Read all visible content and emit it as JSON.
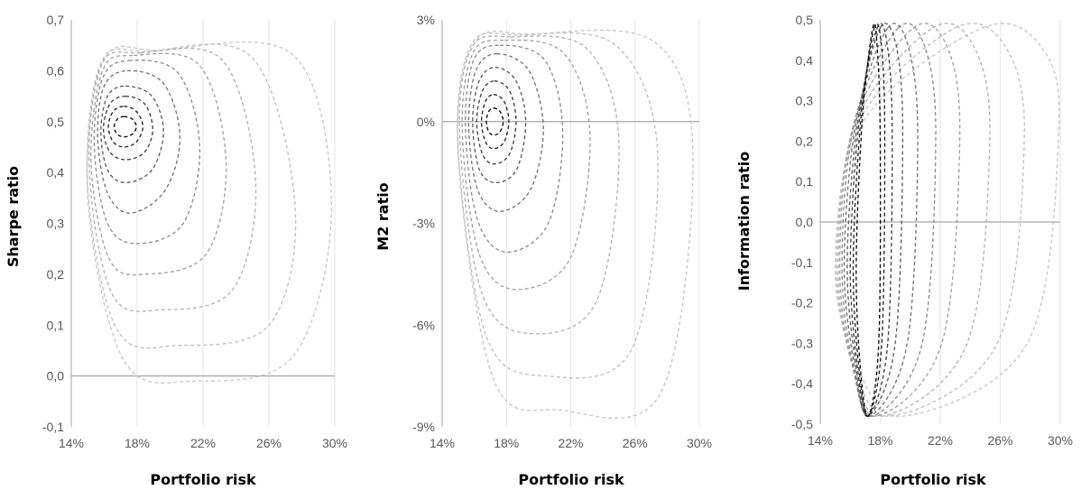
{
  "colors": {
    "background": "#ffffff",
    "gridline": "#e6e6e6",
    "zero_line": "#a6a6a6",
    "tick_text": "#595959",
    "curves_inner_to_outer": [
      "#000000",
      "#1e1e1e",
      "#3a3a3a",
      "#575757",
      "#707070",
      "#898989",
      "#9e9e9e",
      "#b0b0b0",
      "#bebebe",
      "#c6c6c6"
    ]
  },
  "chart_data": [
    {
      "type": "line",
      "title": "",
      "xlabel": "Portfolio risk",
      "ylabel": "Sharpe ratio",
      "xlim": [
        0.14,
        0.3
      ],
      "ylim": [
        -0.1,
        0.7
      ],
      "x_ticks": [
        0.14,
        0.18,
        0.22,
        0.26,
        0.3
      ],
      "x_tick_labels": [
        "14%",
        "18%",
        "22%",
        "26%",
        "30%"
      ],
      "y_ticks": [
        -0.1,
        0.0,
        0.1,
        0.2,
        0.3,
        0.4,
        0.5,
        0.6,
        0.7
      ],
      "y_tick_labels": [
        "-0,1",
        "0,0",
        "0,1",
        "0,2",
        "0,3",
        "0,4",
        "0,5",
        "0,6",
        "0,7"
      ],
      "grid": "vertical",
      "reference_line_y": 0.0,
      "line_style": "dashed",
      "series": [
        {
          "x": [
            0.172,
            0.177,
            0.1795,
            0.177,
            0.172,
            0.168,
            0.166,
            0.168,
            0.172
          ],
          "y": [
            0.51,
            0.505,
            0.49,
            0.475,
            0.47,
            0.475,
            0.49,
            0.505,
            0.51
          ]
        },
        {
          "x": [
            0.172,
            0.1795,
            0.1835,
            0.1795,
            0.172,
            0.1655,
            0.1625,
            0.1655,
            0.172
          ],
          "y": [
            0.53,
            0.52,
            0.49,
            0.46,
            0.45,
            0.46,
            0.49,
            0.52,
            0.53
          ]
        },
        {
          "x": [
            0.173,
            0.1845,
            0.1895,
            0.1845,
            0.173,
            0.1635,
            0.1595,
            0.1635,
            0.173
          ],
          "y": [
            0.55,
            0.535,
            0.485,
            0.44,
            0.425,
            0.44,
            0.485,
            0.535,
            0.55
          ]
        },
        {
          "x": [
            0.173,
            0.189,
            0.196,
            0.189,
            0.173,
            0.162,
            0.158,
            0.162,
            0.173
          ],
          "y": [
            0.57,
            0.55,
            0.48,
            0.405,
            0.38,
            0.405,
            0.48,
            0.55,
            0.57
          ]
        },
        {
          "x": [
            0.174,
            0.196,
            0.206,
            0.197,
            0.176,
            0.162,
            0.156,
            0.16,
            0.174
          ],
          "y": [
            0.6,
            0.575,
            0.47,
            0.365,
            0.32,
            0.36,
            0.47,
            0.57,
            0.6
          ]
        },
        {
          "x": [
            0.175,
            0.205,
            0.218,
            0.208,
            0.18,
            0.162,
            0.154,
            0.159,
            0.175
          ],
          "y": [
            0.62,
            0.595,
            0.45,
            0.3,
            0.26,
            0.3,
            0.45,
            0.585,
            0.62
          ]
        },
        {
          "x": [
            0.178,
            0.218,
            0.234,
            0.222,
            0.185,
            0.163,
            0.152,
            0.159,
            0.178
          ],
          "y": [
            0.63,
            0.61,
            0.42,
            0.24,
            0.2,
            0.23,
            0.42,
            0.6,
            0.63
          ]
        },
        {
          "x": [
            0.182,
            0.232,
            0.252,
            0.238,
            0.195,
            0.165,
            0.151,
            0.158,
            0.182
          ],
          "y": [
            0.635,
            0.62,
            0.38,
            0.17,
            0.13,
            0.16,
            0.4,
            0.61,
            0.635
          ]
        },
        {
          "x": [
            0.187,
            0.25,
            0.276,
            0.26,
            0.205,
            0.168,
            0.15,
            0.158,
            0.187
          ],
          "y": [
            0.638,
            0.625,
            0.33,
            0.1,
            0.06,
            0.09,
            0.37,
            0.615,
            0.638
          ]
        },
        {
          "x": [
            0.194,
            0.275,
            0.298,
            0.275,
            0.215,
            0.172,
            0.15,
            0.16,
            0.194
          ],
          "y": [
            0.64,
            0.63,
            0.33,
            0.04,
            -0.01,
            0.03,
            0.35,
            0.62,
            0.64
          ]
        }
      ]
    },
    {
      "type": "line",
      "title": "",
      "xlabel": "Portfolio risk",
      "ylabel": "M2 ratio",
      "xlim": [
        0.14,
        0.3
      ],
      "ylim": [
        -0.09,
        0.03
      ],
      "x_ticks": [
        0.14,
        0.18,
        0.22,
        0.26,
        0.3
      ],
      "x_tick_labels": [
        "14%",
        "18%",
        "22%",
        "26%",
        "30%"
      ],
      "y_ticks": [
        -0.09,
        -0.06,
        -0.03,
        0.0,
        0.03
      ],
      "y_tick_labels": [
        "-9%",
        "-6%",
        "-3%",
        "0%",
        "3%"
      ],
      "grid": "vertical",
      "reference_line_y": 0.0,
      "line_style": "dashed",
      "series": [
        {
          "x": [
            0.172,
            0.176,
            0.178,
            0.176,
            0.172,
            0.169,
            0.1675,
            0.169,
            0.172
          ],
          "y": [
            0.004,
            0.003,
            0.0,
            -0.003,
            -0.004,
            -0.003,
            0.0,
            0.003,
            0.004
          ]
        },
        {
          "x": [
            0.172,
            0.1785,
            0.1815,
            0.1785,
            0.172,
            0.167,
            0.1645,
            0.167,
            0.172
          ],
          "y": [
            0.008,
            0.006,
            0.0,
            -0.006,
            -0.008,
            -0.006,
            0.0,
            0.006,
            0.008
          ]
        },
        {
          "x": [
            0.1725,
            0.182,
            0.186,
            0.182,
            0.1725,
            0.165,
            0.1615,
            0.165,
            0.1725
          ],
          "y": [
            0.012,
            0.009,
            0.0,
            -0.0095,
            -0.0125,
            -0.0095,
            0.0,
            0.009,
            0.012
          ]
        },
        {
          "x": [
            0.173,
            0.186,
            0.192,
            0.1865,
            0.1735,
            0.163,
            0.159,
            0.163,
            0.173
          ],
          "y": [
            0.016,
            0.012,
            0.0,
            -0.014,
            -0.018,
            -0.014,
            0.0,
            0.012,
            0.016
          ]
        },
        {
          "x": [
            0.174,
            0.194,
            0.203,
            0.195,
            0.176,
            0.162,
            0.1565,
            0.161,
            0.174
          ],
          "y": [
            0.02,
            0.015,
            -0.002,
            -0.02,
            -0.0265,
            -0.02,
            -0.001,
            0.015,
            0.02
          ]
        },
        {
          "x": [
            0.176,
            0.204,
            0.215,
            0.206,
            0.18,
            0.162,
            0.1545,
            0.1595,
            0.176
          ],
          "y": [
            0.0225,
            0.018,
            -0.003,
            -0.03,
            -0.0385,
            -0.029,
            -0.002,
            0.018,
            0.0225
          ]
        },
        {
          "x": [
            0.179,
            0.216,
            0.232,
            0.22,
            0.186,
            0.163,
            0.1525,
            0.159,
            0.179
          ],
          "y": [
            0.024,
            0.02,
            -0.004,
            -0.04,
            -0.0495,
            -0.039,
            -0.003,
            0.02,
            0.024
          ]
        },
        {
          "x": [
            0.183,
            0.23,
            0.25,
            0.236,
            0.195,
            0.165,
            0.151,
            0.158,
            0.183
          ],
          "y": [
            0.025,
            0.0215,
            -0.006,
            -0.053,
            -0.0625,
            -0.051,
            -0.005,
            0.0215,
            0.025
          ]
        },
        {
          "x": [
            0.188,
            0.248,
            0.274,
            0.258,
            0.205,
            0.168,
            0.15,
            0.158,
            0.188
          ],
          "y": [
            0.0255,
            0.0225,
            -0.009,
            -0.067,
            -0.075,
            -0.064,
            -0.008,
            0.0225,
            0.0255
          ]
        },
        {
          "x": [
            0.195,
            0.272,
            0.296,
            0.276,
            0.213,
            0.172,
            0.15,
            0.16,
            0.195
          ],
          "y": [
            0.0258,
            0.0235,
            -0.01,
            -0.08,
            -0.085,
            -0.076,
            -0.01,
            0.023,
            0.0258
          ]
        }
      ]
    },
    {
      "type": "line",
      "title": "",
      "xlabel": "Portfolio risk",
      "ylabel": "Information ratio",
      "xlim": [
        0.14,
        0.3
      ],
      "ylim": [
        -0.5,
        0.5
      ],
      "x_ticks": [
        0.14,
        0.18,
        0.22,
        0.26,
        0.3
      ],
      "x_tick_labels": [
        "14%",
        "18%",
        "22%",
        "26%",
        "30%"
      ],
      "y_ticks": [
        -0.5,
        -0.4,
        -0.3,
        -0.2,
        -0.1,
        0.0,
        0.1,
        0.2,
        0.3,
        0.4,
        0.5
      ],
      "y_tick_labels": [
        "-0,5",
        "-0,4",
        "-0,3",
        "-0,2",
        "-0,1",
        "0,0",
        "0,1",
        "0,2",
        "0,3",
        "0,4",
        "0,5"
      ],
      "grid": "vertical",
      "reference_line_y": 0.0,
      "line_style": "dashed",
      "series": [
        {
          "x": [
            0.175,
            0.178,
            0.18,
            0.179,
            0.172,
            0.1665,
            0.164,
            0.168,
            0.175
          ],
          "y": [
            0.48,
            0.43,
            0.2,
            -0.3,
            -0.48,
            -0.35,
            -0.1,
            0.25,
            0.48
          ]
        },
        {
          "x": [
            0.176,
            0.181,
            0.183,
            0.181,
            0.172,
            0.1655,
            0.162,
            0.167,
            0.176
          ],
          "y": [
            0.48,
            0.43,
            0.2,
            -0.3,
            -0.48,
            -0.35,
            -0.1,
            0.25,
            0.48
          ]
        },
        {
          "x": [
            0.178,
            0.185,
            0.188,
            0.185,
            0.172,
            0.1645,
            0.16,
            0.166,
            0.178
          ],
          "y": [
            0.48,
            0.43,
            0.2,
            -0.3,
            -0.48,
            -0.35,
            -0.1,
            0.25,
            0.48
          ]
        },
        {
          "x": [
            0.18,
            0.191,
            0.195,
            0.19,
            0.172,
            0.1635,
            0.158,
            0.165,
            0.18
          ],
          "y": [
            0.48,
            0.43,
            0.2,
            -0.3,
            -0.48,
            -0.35,
            -0.1,
            0.25,
            0.48
          ]
        },
        {
          "x": [
            0.185,
            0.199,
            0.205,
            0.198,
            0.173,
            0.1625,
            0.156,
            0.164,
            0.185
          ],
          "y": [
            0.48,
            0.43,
            0.2,
            -0.3,
            -0.48,
            -0.35,
            -0.1,
            0.25,
            0.48
          ]
        },
        {
          "x": [
            0.192,
            0.21,
            0.217,
            0.208,
            0.175,
            0.1615,
            0.1545,
            0.163,
            0.192
          ],
          "y": [
            0.48,
            0.43,
            0.2,
            -0.3,
            -0.48,
            -0.35,
            -0.1,
            0.25,
            0.48
          ]
        },
        {
          "x": [
            0.202,
            0.225,
            0.233,
            0.221,
            0.178,
            0.161,
            0.153,
            0.163,
            0.202
          ],
          "y": [
            0.48,
            0.43,
            0.2,
            -0.3,
            -0.48,
            -0.35,
            -0.1,
            0.25,
            0.48
          ]
        },
        {
          "x": [
            0.215,
            0.243,
            0.253,
            0.238,
            0.182,
            0.161,
            0.152,
            0.164,
            0.215
          ],
          "y": [
            0.48,
            0.43,
            0.2,
            -0.3,
            -0.48,
            -0.35,
            -0.1,
            0.25,
            0.48
          ]
        },
        {
          "x": [
            0.23,
            0.264,
            0.276,
            0.258,
            0.188,
            0.162,
            0.151,
            0.166,
            0.23
          ],
          "y": [
            0.48,
            0.43,
            0.2,
            -0.3,
            -0.48,
            -0.35,
            -0.1,
            0.25,
            0.48
          ]
        },
        {
          "x": [
            0.248,
            0.288,
            0.299,
            0.278,
            0.196,
            0.164,
            0.15,
            0.169,
            0.248
          ],
          "y": [
            0.48,
            0.43,
            0.22,
            -0.3,
            -0.48,
            -0.35,
            -0.1,
            0.25,
            0.48
          ]
        }
      ]
    }
  ]
}
